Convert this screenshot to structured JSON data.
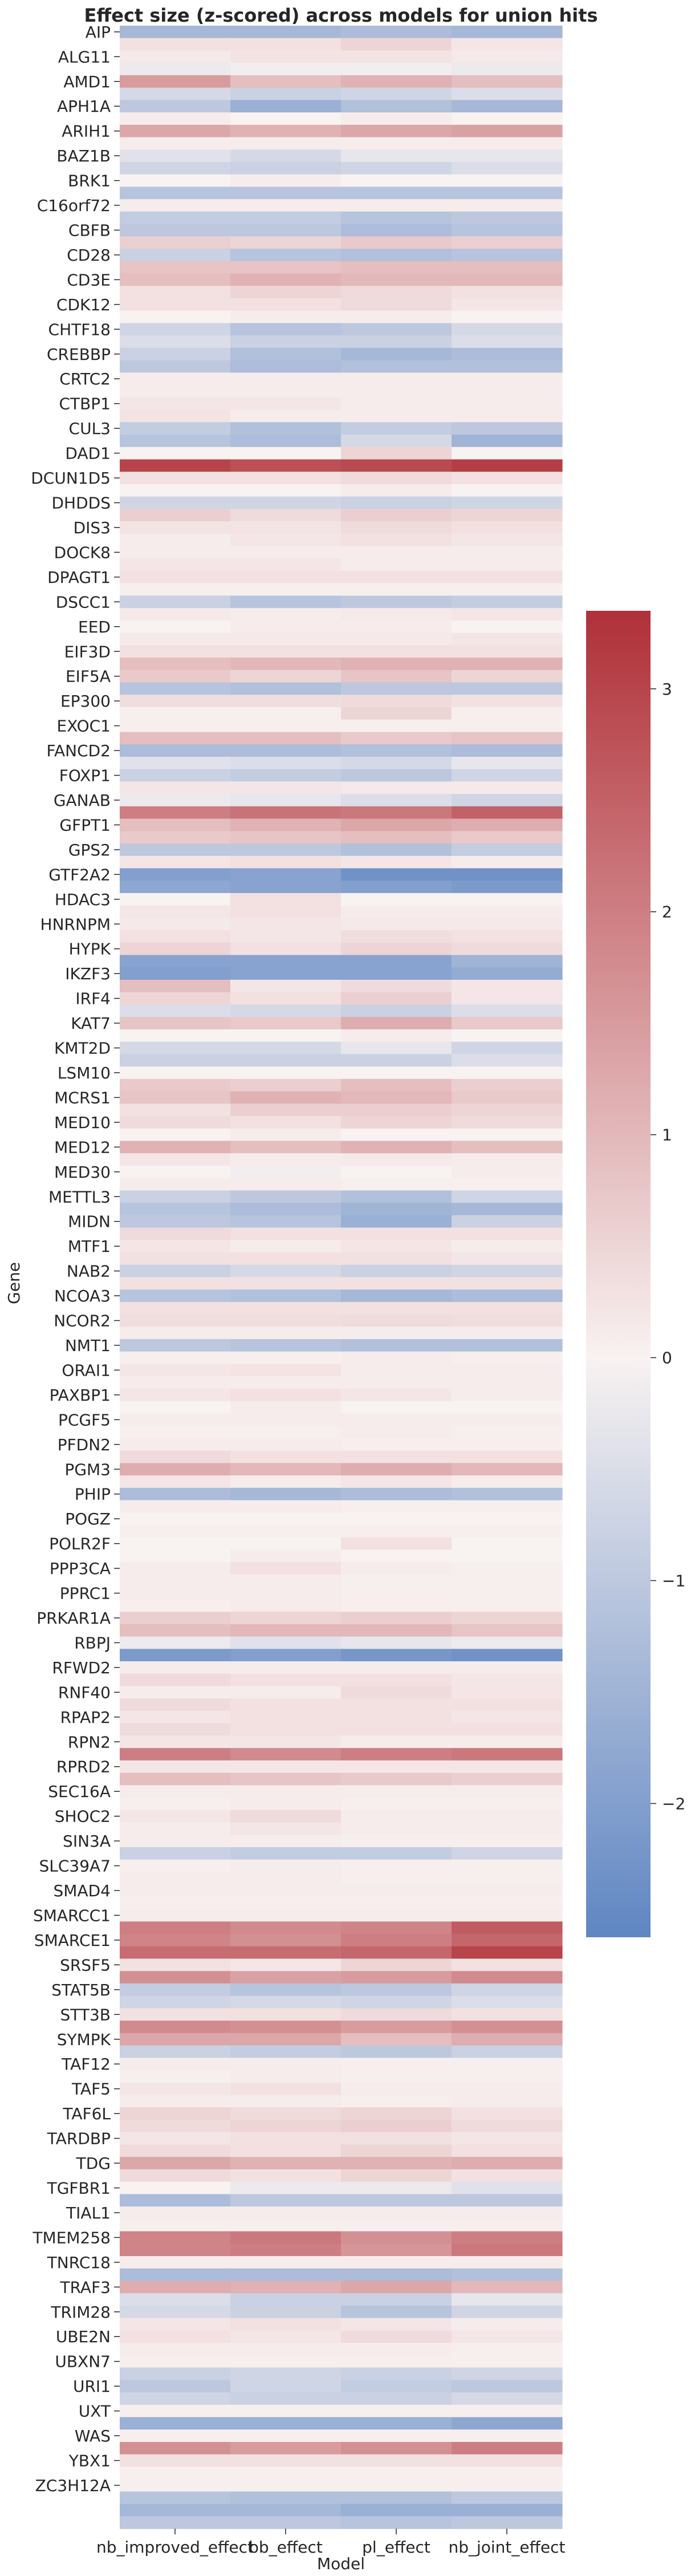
{
  "chart_data": {
    "type": "heatmap",
    "title": "Effect size (z-scored) across models for union hits",
    "xlabel": "Model",
    "ylabel": "Gene",
    "models": [
      "nb_improved_effect",
      "bb_effect",
      "pl_effect",
      "nb_joint_effect"
    ],
    "gene_labels": [
      "AIP",
      "ALG11",
      "AMD1",
      "APH1A",
      "ARIH1",
      "BAZ1B",
      "BRK1",
      "C16orf72",
      "CBFB",
      "CD28",
      "CD3E",
      "CDK12",
      "CHTF18",
      "CREBBP",
      "CRTC2",
      "CTBP1",
      "CUL3",
      "DAD1",
      "DCUN1D5",
      "DHDDS",
      "DIS3",
      "DOCK8",
      "DPAGT1",
      "DSCC1",
      "EED",
      "EIF3D",
      "EIF5A",
      "EP300",
      "EXOC1",
      "FANCD2",
      "FOXP1",
      "GANAB",
      "GFPT1",
      "GPS2",
      "GTF2A2",
      "HDAC3",
      "HNRNPM",
      "HYPK",
      "IKZF3",
      "IRF4",
      "KAT7",
      "KMT2D",
      "LSM10",
      "MCRS1",
      "MED10",
      "MED12",
      "MED30",
      "METTL3",
      "MIDN",
      "MTF1",
      "NAB2",
      "NCOA3",
      "NCOR2",
      "NMT1",
      "ORAI1",
      "PAXBP1",
      "PCGF5",
      "PFDN2",
      "PGM3",
      "PHIP",
      "POGZ",
      "POLR2F",
      "PPP3CA",
      "PPRC1",
      "PRKAR1A",
      "RBPJ",
      "RFWD2",
      "RNF40",
      "RPAP2",
      "RPN2",
      "RPRD2",
      "SEC16A",
      "SHOC2",
      "SIN3A",
      "SLC39A7",
      "SMAD4",
      "SMARCC1",
      "SMARCE1",
      "SRSF5",
      "STAT5B",
      "STT3B",
      "SYMPK",
      "TAF12",
      "TAF5",
      "TAF6L",
      "TARDBP",
      "TDG",
      "TGFBR1",
      "TIAL1",
      "TMEM258",
      "TNRC18",
      "TRAF3",
      "TRIM28",
      "UBE2N",
      "UBXN7",
      "URI1",
      "UXT",
      "WAS",
      "YBX1",
      "ZC3H12A"
    ],
    "values": [
      [
        -1.4,
        -1.4,
        -1.3,
        -1.4
      ],
      [
        0.3,
        0.3,
        0.5,
        0.2
      ],
      [
        0.15,
        0.25,
        0.25,
        0.15
      ],
      [
        -0.2,
        -0.1,
        -0.1,
        -0.2
      ],
      [
        1.5,
        0.9,
        1.1,
        0.9
      ],
      [
        -0.6,
        -0.8,
        -0.7,
        -0.5
      ],
      [
        -1.0,
        -1.6,
        -1.2,
        -1.4
      ],
      [
        0.1,
        0.0,
        0.1,
        0.0
      ],
      [
        1.3,
        1.1,
        1.3,
        1.4
      ],
      [
        0.1,
        0.1,
        0.1,
        0.1
      ],
      [
        -0.4,
        -0.6,
        -0.3,
        -0.3
      ],
      [
        -0.7,
        -0.8,
        -0.7,
        -0.5
      ],
      [
        0.0,
        0.1,
        0.0,
        0.0
      ],
      [
        -1.1,
        -1.1,
        -1.1,
        -1.1
      ],
      [
        0.1,
        0.1,
        0.1,
        0.1
      ],
      [
        -0.9,
        -0.9,
        -1.1,
        -1.0
      ],
      [
        -1.0,
        -1.0,
        -1.3,
        -1.1
      ],
      [
        0.6,
        0.5,
        0.7,
        0.6
      ],
      [
        -0.8,
        -1.1,
        -1.2,
        -1.1
      ],
      [
        0.8,
        0.8,
        0.9,
        0.9
      ],
      [
        0.9,
        1.1,
        1.0,
        1.0
      ],
      [
        0.3,
        0.5,
        0.4,
        0.3
      ],
      [
        0.3,
        0.3,
        0.4,
        0.2
      ],
      [
        0.0,
        0.1,
        0.1,
        0.0
      ],
      [
        -0.7,
        -1.1,
        -1.0,
        -0.6
      ],
      [
        -0.5,
        -0.8,
        -0.8,
        -0.5
      ],
      [
        -0.8,
        -1.2,
        -1.4,
        -1.3
      ],
      [
        -1.0,
        -1.3,
        -1.2,
        -1.2
      ],
      [
        0.1,
        0.1,
        0.1,
        0.1
      ],
      [
        0.1,
        0.1,
        0.1,
        0.1
      ],
      [
        0.2,
        0.2,
        0.1,
        0.1
      ],
      [
        0.25,
        0.1,
        0.1,
        0.1
      ],
      [
        -0.9,
        -1.2,
        -0.9,
        -1.0
      ],
      [
        -1.1,
        -1.3,
        -0.6,
        -1.5
      ],
      [
        0.0,
        0.0,
        0.5,
        0.0
      ],
      [
        3.0,
        2.8,
        2.9,
        3.1
      ],
      [
        0.3,
        0.3,
        0.4,
        0.3
      ],
      [
        0.0,
        0.0,
        0.1,
        0.0
      ],
      [
        -0.7,
        -0.7,
        -0.8,
        -0.7
      ],
      [
        0.6,
        0.4,
        0.6,
        0.5
      ],
      [
        0.25,
        0.25,
        0.4,
        0.3
      ],
      [
        0.1,
        0.2,
        0.3,
        0.2
      ],
      [
        0.1,
        0.1,
        0.1,
        0.1
      ],
      [
        0.2,
        0.2,
        0.1,
        0.1
      ],
      [
        0.3,
        0.3,
        0.3,
        0.3
      ],
      [
        0.05,
        0.05,
        0.05,
        0.05
      ],
      [
        -0.8,
        -1.1,
        -1.0,
        -0.9
      ],
      [
        0.15,
        0.1,
        0.15,
        0.2
      ],
      [
        0.0,
        0.1,
        0.1,
        0.0
      ],
      [
        0.15,
        0.15,
        0.15,
        0.2
      ],
      [
        0.3,
        0.3,
        0.3,
        0.3
      ],
      [
        0.9,
        1.0,
        1.1,
        1.1
      ],
      [
        0.7,
        0.5,
        0.8,
        0.5
      ],
      [
        -1.1,
        -1.2,
        -1.0,
        -1.0
      ],
      [
        0.35,
        0.35,
        0.4,
        0.3
      ],
      [
        0.05,
        0.05,
        0.5,
        0.05
      ],
      [
        0.05,
        0.05,
        0.05,
        0.05
      ],
      [
        0.9,
        0.9,
        0.7,
        0.8
      ],
      [
        -1.3,
        -1.3,
        -1.2,
        -1.3
      ],
      [
        -0.4,
        -0.5,
        -0.6,
        -0.3
      ],
      [
        -0.8,
        -0.9,
        -1.0,
        -0.7
      ],
      [
        0.2,
        0.2,
        0.15,
        0.15
      ],
      [
        -0.2,
        -0.3,
        -0.5,
        -0.7
      ],
      [
        2.0,
        2.2,
        2.1,
        2.5
      ],
      [
        0.9,
        1.1,
        1.3,
        1.2
      ],
      [
        0.7,
        0.8,
        0.9,
        0.7
      ],
      [
        -1.0,
        -1.0,
        -1.2,
        -0.9
      ],
      [
        0.2,
        0.3,
        0.2,
        0.1
      ],
      [
        -2.0,
        -1.9,
        -2.3,
        -2.3
      ],
      [
        -1.8,
        -1.9,
        -2.0,
        -2.1
      ],
      [
        0.0,
        0.3,
        0.0,
        0.0
      ],
      [
        0.2,
        0.3,
        0.1,
        0.1
      ],
      [
        0.15,
        0.2,
        0.15,
        0.15
      ],
      [
        0.3,
        0.2,
        0.35,
        0.3
      ],
      [
        0.5,
        0.3,
        0.5,
        0.4
      ],
      [
        -1.9,
        -1.9,
        -1.9,
        -1.5
      ],
      [
        -2.0,
        -1.9,
        -1.9,
        -1.7
      ],
      [
        0.9,
        0.2,
        0.4,
        0.2
      ],
      [
        0.5,
        0.3,
        0.6,
        0.2
      ],
      [
        -0.5,
        -0.6,
        -0.8,
        -0.5
      ],
      [
        0.8,
        0.7,
        1.2,
        0.7
      ],
      [
        0.0,
        0.0,
        0.1,
        0.0
      ],
      [
        -0.6,
        -0.6,
        -0.3,
        -0.7
      ],
      [
        -0.8,
        -0.8,
        -0.8,
        -0.5
      ],
      [
        0.0,
        0.0,
        0.0,
        0.0
      ],
      [
        0.7,
        0.6,
        0.9,
        0.6
      ],
      [
        0.8,
        1.1,
        1.0,
        0.7
      ],
      [
        0.3,
        0.6,
        0.6,
        0.5
      ],
      [
        0.4,
        0.3,
        0.5,
        0.4
      ],
      [
        0.0,
        0.1,
        0.0,
        0.0
      ],
      [
        1.1,
        0.9,
        1.1,
        0.9
      ],
      [
        0.2,
        0.1,
        0.15,
        0.1
      ],
      [
        0.0,
        -0.1,
        0.0,
        0.1
      ],
      [
        0.1,
        0.1,
        0.05,
        0.05
      ],
      [
        -0.8,
        -1.0,
        -1.2,
        -0.7
      ],
      [
        -1.1,
        -1.3,
        -1.5,
        -1.4
      ],
      [
        -1.0,
        -1.1,
        -1.6,
        -0.8
      ],
      [
        0.4,
        0.3,
        0.3,
        0.3
      ],
      [
        0.2,
        0.1,
        0.2,
        0.1
      ],
      [
        0.3,
        0.3,
        0.3,
        0.2
      ],
      [
        -0.8,
        -0.6,
        -0.8,
        -0.7
      ],
      [
        0.3,
        0.3,
        0.3,
        0.3
      ],
      [
        -1.1,
        -1.2,
        -1.4,
        -1.3
      ],
      [
        0.3,
        0.3,
        0.3,
        0.3
      ],
      [
        0.35,
        0.35,
        0.4,
        0.35
      ],
      [
        0.1,
        0.1,
        0.1,
        0.1
      ],
      [
        -1.0,
        -1.1,
        -1.2,
        -1.2
      ],
      [
        0.05,
        0.05,
        0.1,
        0.05
      ],
      [
        0.2,
        0.25,
        0.1,
        0.1
      ],
      [
        0.1,
        0.1,
        0.1,
        0.1
      ],
      [
        0.2,
        0.3,
        0.2,
        0.1
      ],
      [
        0.0,
        0.1,
        0.0,
        0.0
      ],
      [
        0.1,
        0.1,
        0.1,
        0.1
      ],
      [
        0.05,
        0.05,
        0.1,
        0.05
      ],
      [
        0.1,
        0.1,
        0.05,
        0.05
      ],
      [
        0.4,
        0.3,
        0.3,
        0.3
      ],
      [
        1.2,
        1.0,
        1.2,
        1.0
      ],
      [
        0.2,
        0.1,
        0.2,
        0.1
      ],
      [
        -1.3,
        -1.4,
        -1.3,
        -1.2
      ],
      [
        0.1,
        0.1,
        0.05,
        0.05
      ],
      [
        0.0,
        0.0,
        0.0,
        0.0
      ],
      [
        0.05,
        0.05,
        0.05,
        0.05
      ],
      [
        0.0,
        0.0,
        0.3,
        0.0
      ],
      [
        0.0,
        0.1,
        0.0,
        0.0
      ],
      [
        0.1,
        0.3,
        0.1,
        0.05
      ],
      [
        0.1,
        0.1,
        0.05,
        0.05
      ],
      [
        0.1,
        0.1,
        0.05,
        0.05
      ],
      [
        0.05,
        0.1,
        0.05,
        0.05
      ],
      [
        0.6,
        0.5,
        0.6,
        0.5
      ],
      [
        0.9,
        1.0,
        1.0,
        0.8
      ],
      [
        -0.2,
        -0.4,
        -0.3,
        -0.2
      ],
      [
        -2.1,
        -2.0,
        -2.2,
        -2.3
      ],
      [
        0.1,
        0.1,
        0.1,
        0.1
      ],
      [
        0.4,
        0.3,
        0.3,
        0.2
      ],
      [
        0.1,
        0.1,
        0.4,
        0.2
      ],
      [
        0.4,
        0.3,
        0.3,
        0.3
      ],
      [
        0.2,
        0.3,
        0.3,
        0.2
      ],
      [
        0.4,
        0.3,
        0.3,
        0.3
      ],
      [
        0.2,
        0.2,
        0.1,
        0.1
      ],
      [
        2.0,
        1.8,
        2.0,
        2.1
      ],
      [
        0.2,
        0.2,
        0.2,
        0.2
      ],
      [
        0.9,
        0.8,
        0.7,
        0.6
      ],
      [
        0.1,
        0.1,
        0.1,
        0.1
      ],
      [
        0.05,
        0.1,
        0.05,
        0.05
      ],
      [
        0.2,
        0.4,
        0.1,
        0.1
      ],
      [
        0.1,
        0.2,
        0.1,
        0.1
      ],
      [
        0.1,
        0.1,
        0.05,
        0.05
      ],
      [
        -0.8,
        -0.9,
        -0.9,
        -0.7
      ],
      [
        0.05,
        0.1,
        0.05,
        0.05
      ],
      [
        0.1,
        0.1,
        0.05,
        0.05
      ],
      [
        0.1,
        0.1,
        0.1,
        0.1
      ],
      [
        0.05,
        0.05,
        0.05,
        0.05
      ],
      [
        0.1,
        0.1,
        0.1,
        0.1
      ],
      [
        2.0,
        1.8,
        1.9,
        2.6
      ],
      [
        1.9,
        1.7,
        2.0,
        2.4
      ],
      [
        2.3,
        2.3,
        2.4,
        3.0
      ],
      [
        0.3,
        0.2,
        0.5,
        0.3
      ],
      [
        1.7,
        1.4,
        1.5,
        1.8
      ],
      [
        -0.9,
        -1.1,
        -1.0,
        -0.7
      ],
      [
        -0.7,
        -0.6,
        -0.7,
        -0.5
      ],
      [
        0.3,
        0.3,
        0.4,
        0.3
      ],
      [
        1.8,
        1.7,
        1.5,
        1.7
      ],
      [
        1.3,
        1.3,
        0.9,
        1.2
      ],
      [
        -0.8,
        -0.9,
        -1.0,
        -0.8
      ],
      [
        0.1,
        0.1,
        0.05,
        0.05
      ],
      [
        0.05,
        0.1,
        0.05,
        0.05
      ],
      [
        0.2,
        0.3,
        0.1,
        0.1
      ],
      [
        0.1,
        0.1,
        0.05,
        0.1
      ],
      [
        0.5,
        0.4,
        0.5,
        0.3
      ],
      [
        0.4,
        0.5,
        0.6,
        0.4
      ],
      [
        0.2,
        0.3,
        0.3,
        0.2
      ],
      [
        0.4,
        0.3,
        0.5,
        0.3
      ],
      [
        1.3,
        1.1,
        1.1,
        1.2
      ],
      [
        0.4,
        0.3,
        0.5,
        0.3
      ],
      [
        0.0,
        -0.2,
        -0.2,
        -0.4
      ],
      [
        -1.3,
        -1.0,
        -1.0,
        -1.0
      ],
      [
        0.1,
        0.1,
        0.1,
        0.1
      ],
      [
        0.05,
        0.05,
        0.05,
        0.05
      ],
      [
        1.9,
        2.1,
        1.7,
        2.0
      ],
      [
        1.9,
        2.0,
        1.6,
        2.1
      ],
      [
        0.1,
        0.1,
        0.1,
        0.1
      ],
      [
        -1.3,
        -1.3,
        -1.3,
        -1.2
      ],
      [
        1.2,
        1.1,
        1.3,
        1.0
      ],
      [
        -0.5,
        -0.8,
        -0.8,
        -0.3
      ],
      [
        -0.6,
        -0.8,
        -1.1,
        -0.7
      ],
      [
        0.2,
        0.3,
        0.2,
        0.1
      ],
      [
        0.3,
        0.2,
        0.4,
        0.2
      ],
      [
        0.1,
        0.1,
        0.1,
        0.05
      ],
      [
        0.05,
        0.05,
        0.05,
        0.05
      ],
      [
        -0.8,
        -0.7,
        -0.8,
        -0.7
      ],
      [
        -1.0,
        -0.7,
        -0.9,
        -1.0
      ],
      [
        -0.7,
        -0.8,
        -0.8,
        -0.6
      ],
      [
        0.05,
        0.05,
        0.05,
        0.05
      ],
      [
        -1.6,
        -1.6,
        -1.6,
        -1.8
      ],
      [
        0.05,
        0.05,
        0.05,
        0.05
      ],
      [
        1.7,
        1.5,
        1.7,
        2.0
      ],
      [
        0.3,
        0.3,
        0.3,
        0.3
      ],
      [
        0.05,
        0.05,
        0.05,
        0.05
      ],
      [
        0.05,
        0.05,
        0.05,
        0.05
      ],
      [
        -1.1,
        -1.2,
        -1.2,
        -1.0
      ],
      [
        -1.4,
        -1.4,
        -1.6,
        -1.6
      ],
      [
        -1.0,
        -1.0,
        -1.1,
        -1.0
      ]
    ],
    "colorbar": {
      "vmin": -2.6,
      "vmax": 3.35,
      "ticks": [
        -2,
        -1,
        0,
        1,
        2,
        3
      ],
      "tick_labels": [
        "−2",
        "−1",
        "0",
        "1",
        "2",
        "3"
      ],
      "colormap": "vlag",
      "stops": [
        "#5f86c2",
        "#f8f2f1",
        "#b03038"
      ]
    }
  }
}
